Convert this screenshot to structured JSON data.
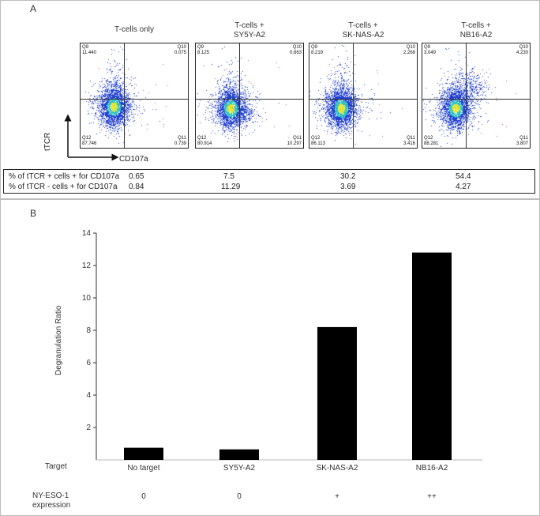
{
  "panelA": {
    "letter": "A",
    "plots": [
      {
        "title": "T-cells only",
        "q9": "Q9\n11.440",
        "q10": "Q10\n0.075",
        "q12": "Q12\n87.746",
        "q11": "Q11\n0.739",
        "density": 1.0,
        "shift": 0
      },
      {
        "title": "T-cells +\nSY5Y-A2",
        "q9": "Q9\n8.125",
        "q10": "Q10\n0.663",
        "q12": "Q12\n80.914",
        "q11": "Q11\n10.297",
        "density": 1.0,
        "shift": 1
      },
      {
        "title": "T-cells +\nSK-NAS-A2",
        "q9": "Q9\n8.219",
        "q10": "Q10\n2.268",
        "q12": "Q12\n86.113",
        "q11": "Q11\n3.416",
        "density": 1.0,
        "shift": 2
      },
      {
        "title": "T-cells +\nNB16-A2",
        "q9": "Q9\n3.049",
        "q10": "Q10\n4.230",
        "q12": "Q12\n88.281",
        "q11": "Q11\n3.807",
        "density": 1.0,
        "shift": 3
      }
    ],
    "y_axis_name": "tTCR",
    "x_axis_name": "CD107a",
    "table": {
      "rows": [
        {
          "label": "% of tTCR + cells + for CD107a",
          "values": [
            "0.65",
            "7.5",
            "30.2",
            "54.4"
          ]
        },
        {
          "label": "% of tTCR - cells + for CD107a",
          "values": [
            "0.84",
            "11.29",
            "3.69",
            "4.27"
          ]
        }
      ]
    }
  },
  "panelB": {
    "letter": "B",
    "row_target_label": "Target",
    "row_expression_label": "NY-ESO-1\nexpression",
    "expression_values": [
      "0",
      "0",
      "+",
      "++"
    ]
  },
  "chart_data": {
    "type": "bar",
    "categories": [
      "No target",
      "SY5Y-A2",
      "SK-NAS-A2",
      "NB16-A2"
    ],
    "values": [
      0.75,
      0.65,
      8.2,
      12.8
    ],
    "title": "",
    "xlabel": "",
    "ylabel": "Degranulation Ratio",
    "ylim": [
      0,
      14
    ],
    "yticks": [
      2,
      4,
      6,
      8,
      10,
      12,
      14
    ],
    "grid": false,
    "bar_color": "#000000"
  },
  "colors": {
    "scatter_low": "#1f3fd0",
    "scatter_mid": "#31c3c4",
    "scatter_high": "#dfe533"
  }
}
